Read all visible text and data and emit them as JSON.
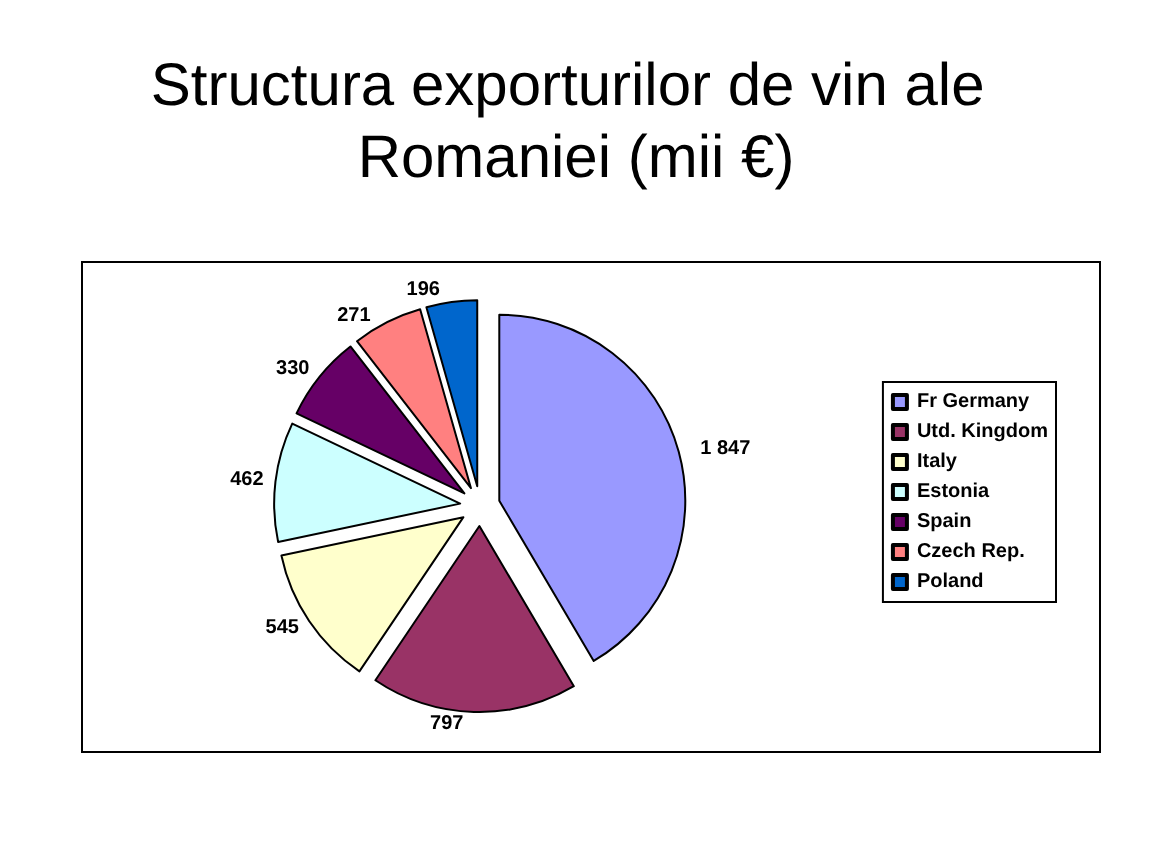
{
  "chart_data": {
    "type": "pie",
    "title": "Structura exporturilor de vin ale Romaniei (mii €)",
    "categories": [
      "Fr Germany",
      "Utd. Kingdom",
      "Italy",
      "Estonia",
      "Spain",
      "Czech Rep.",
      "Poland"
    ],
    "values": [
      1847,
      797,
      545,
      462,
      330,
      271,
      196
    ],
    "colors": [
      "#9999ff",
      "#993366",
      "#ffffcc",
      "#ccffff",
      "#660066",
      "#ff8080",
      "#0066cc"
    ],
    "value_labels": [
      "1 847",
      "797",
      "545",
      "462",
      "330",
      "271",
      "196"
    ],
    "legend": "right"
  }
}
